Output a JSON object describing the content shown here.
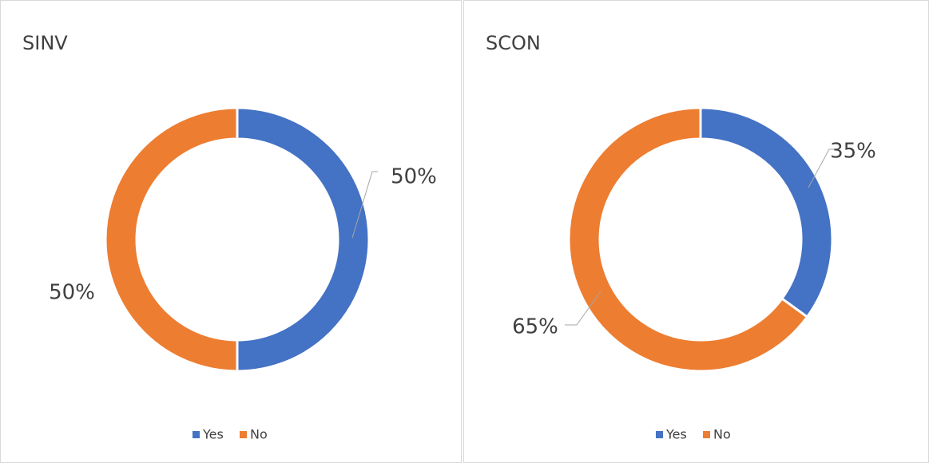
{
  "chart_data": [
    {
      "type": "donut",
      "title": "SINV",
      "categories": [
        "Yes",
        "No"
      ],
      "values": [
        50,
        50
      ],
      "value_labels": [
        "50%",
        "50%"
      ],
      "colors": [
        "#4472c4",
        "#ed7d31"
      ],
      "legend": "bottom"
    },
    {
      "type": "donut",
      "title": "SCON",
      "categories": [
        "Yes",
        "No"
      ],
      "values": [
        35,
        65
      ],
      "value_labels": [
        "35%",
        "65%"
      ],
      "colors": [
        "#4472c4",
        "#ed7d31"
      ],
      "legend": "bottom"
    }
  ]
}
